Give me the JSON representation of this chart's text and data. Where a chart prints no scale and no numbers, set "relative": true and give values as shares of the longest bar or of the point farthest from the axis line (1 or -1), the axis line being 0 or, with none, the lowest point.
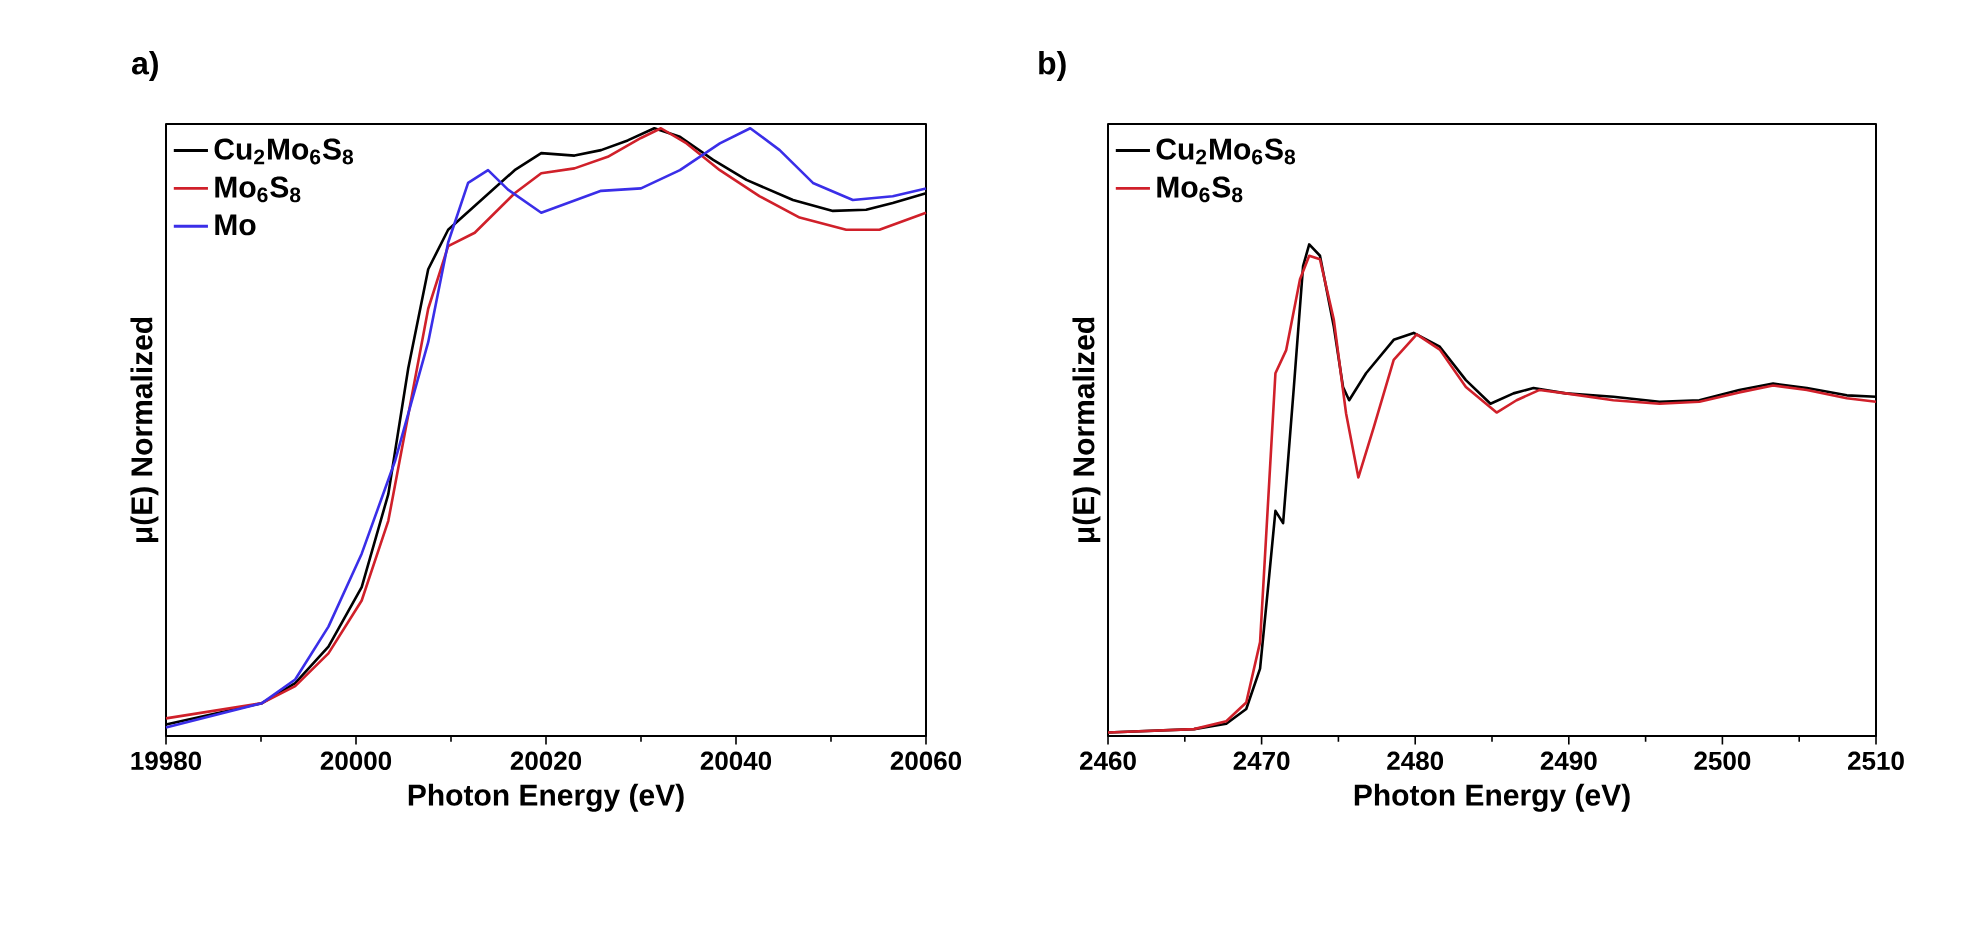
{
  "chart_data": [
    {
      "type": "line",
      "title": "a)",
      "xlabel": "Photon Energy (eV)",
      "ylabel": "μ(E) Normalized",
      "relative": true,
      "legend": "top left",
      "marker": "none",
      "line_style": "solid",
      "xlim": [
        19980,
        20060
      ],
      "xticks": [
        19980,
        20000,
        20020,
        20040,
        20060
      ],
      "series": [
        {
          "name": "Cu$_{2}$Mo$_{6}$S$_{8}$",
          "color": "#000000",
          "x": [
            19980,
            19990.1,
            19993.6,
            19997.1,
            20000.6,
            20003.4,
            20005.5,
            20007.6,
            20009.7,
            20013.2,
            20016.7,
            20019.5,
            20023.0,
            20025.8,
            20028.6,
            20031.4,
            20034.1,
            20037.6,
            20041.1,
            20046.0,
            20050.2,
            20053.7,
            20056.5,
            20060
          ],
          "values": [
            0.019,
            0.054,
            0.087,
            0.147,
            0.245,
            0.398,
            0.605,
            0.768,
            0.833,
            0.882,
            0.931,
            0.959,
            0.955,
            0.964,
            0.98,
            1.0,
            0.986,
            0.948,
            0.915,
            0.882,
            0.864,
            0.866,
            0.877,
            0.893
          ]
        },
        {
          "name": "Mo$_{6}$S$_{8}$",
          "color": "#d0202a",
          "x": [
            19980,
            19990.1,
            19993.6,
            19997.1,
            20000.6,
            20003.4,
            20005.5,
            20007.6,
            20009.7,
            20012.5,
            20016.7,
            20019.5,
            20023.0,
            20026.5,
            20030.0,
            20032.1,
            20034.8,
            20038.3,
            20042.5,
            20046.7,
            20051.6,
            20055.1,
            20060
          ],
          "values": [
            0.029,
            0.054,
            0.082,
            0.136,
            0.223,
            0.354,
            0.528,
            0.703,
            0.806,
            0.828,
            0.893,
            0.926,
            0.934,
            0.953,
            0.984,
            1.0,
            0.975,
            0.931,
            0.888,
            0.853,
            0.833,
            0.833,
            0.861
          ]
        },
        {
          "name": "Mo",
          "color": "#3a2ee8",
          "x": [
            19980,
            19990.1,
            19993.6,
            19997.1,
            20000.6,
            20004.1,
            20007.6,
            20009.7,
            20011.8,
            20013.9,
            20016.0,
            20019.5,
            20022.3,
            20025.8,
            20030.0,
            20034.1,
            20038.3,
            20041.5,
            20044.6,
            20048.1,
            20052.3,
            20056.5,
            20060
          ],
          "values": [
            0.014,
            0.054,
            0.093,
            0.18,
            0.3,
            0.452,
            0.648,
            0.812,
            0.91,
            0.931,
            0.899,
            0.861,
            0.877,
            0.897,
            0.901,
            0.931,
            0.975,
            1.0,
            0.964,
            0.91,
            0.882,
            0.888,
            0.901
          ]
        }
      ]
    },
    {
      "type": "line",
      "title": "b)",
      "xlabel": "Photon Energy (eV)",
      "ylabel": "μ(E) Normalized",
      "relative": true,
      "legend": "top left",
      "marker": "none",
      "line_style": "solid",
      "xlim": [
        2460,
        2510
      ],
      "xticks": [
        2460,
        2470,
        2480,
        2490,
        2500,
        2510
      ],
      "series": [
        {
          "name": "Cu$_{2}$Mo$_{6}$S$_{8}$",
          "color": "#000000",
          "x": [
            2460,
            2465.6,
            2467.7,
            2469.0,
            2469.9,
            2470.5,
            2470.9,
            2471.4,
            2472.1,
            2472.7,
            2473.1,
            2473.8,
            2474.7,
            2475.3,
            2475.7,
            2476.8,
            2478.6,
            2479.9,
            2481.6,
            2483.3,
            2484.9,
            2486.4,
            2487.7,
            2489.8,
            2492.9,
            2495.9,
            2498.5,
            2501.1,
            2503.3,
            2505.5,
            2508.1,
            2510
          ],
          "values": [
            0.007,
            0.014,
            0.025,
            0.055,
            0.137,
            0.328,
            0.458,
            0.433,
            0.71,
            0.956,
            1.0,
            0.977,
            0.833,
            0.71,
            0.683,
            0.738,
            0.806,
            0.82,
            0.792,
            0.724,
            0.676,
            0.697,
            0.708,
            0.697,
            0.69,
            0.68,
            0.683,
            0.704,
            0.717,
            0.708,
            0.693,
            0.69
          ]
        },
        {
          "name": "Mo$_{6}$S$_{8}$",
          "color": "#d0202a",
          "x": [
            2460,
            2465.6,
            2467.7,
            2469.0,
            2469.9,
            2470.5,
            2470.9,
            2471.6,
            2472.5,
            2473.1,
            2473.8,
            2474.7,
            2475.5,
            2476.3,
            2477.3,
            2478.6,
            2480.1,
            2481.6,
            2483.3,
            2485.3,
            2486.6,
            2488.1,
            2489.8,
            2492.9,
            2495.9,
            2498.5,
            2501.1,
            2503.3,
            2505.5,
            2508.1,
            2510
          ],
          "values": [
            0.007,
            0.014,
            0.03,
            0.068,
            0.191,
            0.519,
            0.738,
            0.785,
            0.929,
            0.977,
            0.97,
            0.847,
            0.656,
            0.526,
            0.628,
            0.765,
            0.817,
            0.786,
            0.71,
            0.658,
            0.683,
            0.704,
            0.697,
            0.683,
            0.676,
            0.68,
            0.699,
            0.713,
            0.704,
            0.687,
            0.68
          ]
        }
      ]
    }
  ]
}
